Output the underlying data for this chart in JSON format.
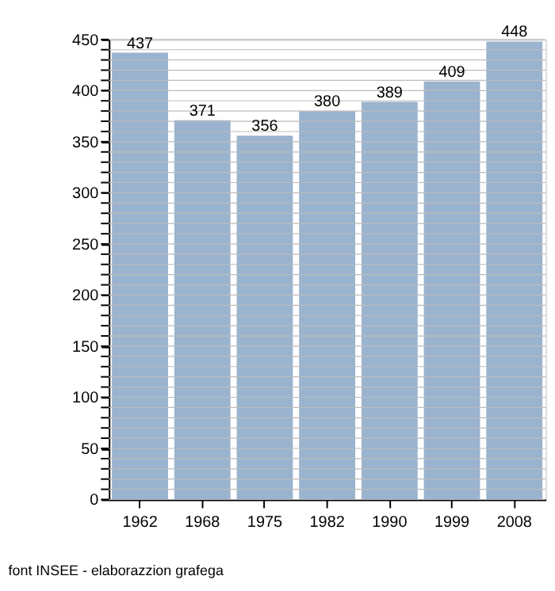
{
  "chart_data": {
    "type": "bar",
    "categories": [
      "1962",
      "1968",
      "1975",
      "1982",
      "1990",
      "1999",
      "2008"
    ],
    "values": [
      437,
      371,
      356,
      380,
      389,
      409,
      448
    ],
    "color": "#9ab3cf",
    "ylim": [
      0,
      450
    ],
    "yticks": [
      0,
      {
        "value": 10,
        "label": null
      },
      {
        "value": 20,
        "label": null
      },
      {
        "value": 30,
        "label": null
      },
      {
        "value": 40,
        "label": null
      },
      50,
      {
        "value": 60,
        "label": null
      },
      {
        "value": 70,
        "label": null
      },
      {
        "value": 80,
        "label": null
      },
      {
        "value": 90,
        "label": null
      },
      100,
      {
        "value": 110,
        "label": null
      },
      {
        "value": 120,
        "label": null
      },
      {
        "value": 130,
        "label": null
      },
      {
        "value": 140,
        "label": null
      },
      150,
      {
        "value": 160,
        "label": null
      },
      {
        "value": 170,
        "label": null
      },
      {
        "value": 180,
        "label": null
      },
      {
        "value": 190,
        "label": null
      },
      200,
      {
        "value": 210,
        "label": null
      },
      {
        "value": 220,
        "label": null
      },
      {
        "value": 230,
        "label": null
      },
      {
        "value": 240,
        "label": null
      },
      250,
      {
        "value": 260,
        "label": null
      },
      {
        "value": 270,
        "label": null
      },
      {
        "value": 280,
        "label": null
      },
      {
        "value": 290,
        "label": null
      },
      300,
      {
        "value": 310,
        "label": null
      },
      {
        "value": 320,
        "label": null
      },
      {
        "value": 330,
        "label": null
      },
      {
        "value": 340,
        "label": null
      },
      350,
      {
        "value": 360,
        "label": null
      },
      {
        "value": 370,
        "label": null
      },
      {
        "value": 380,
        "label": null
      },
      {
        "value": 390,
        "label": null
      },
      400,
      {
        "value": 410,
        "label": null
      },
      {
        "value": 420,
        "label": null
      },
      {
        "value": 430,
        "label": null
      },
      {
        "value": 440,
        "label": null
      },
      450
    ],
    "grid": "y",
    "data_labels": true,
    "annotations": [
      "font INSEE - elaborazzion grafega"
    ]
  }
}
